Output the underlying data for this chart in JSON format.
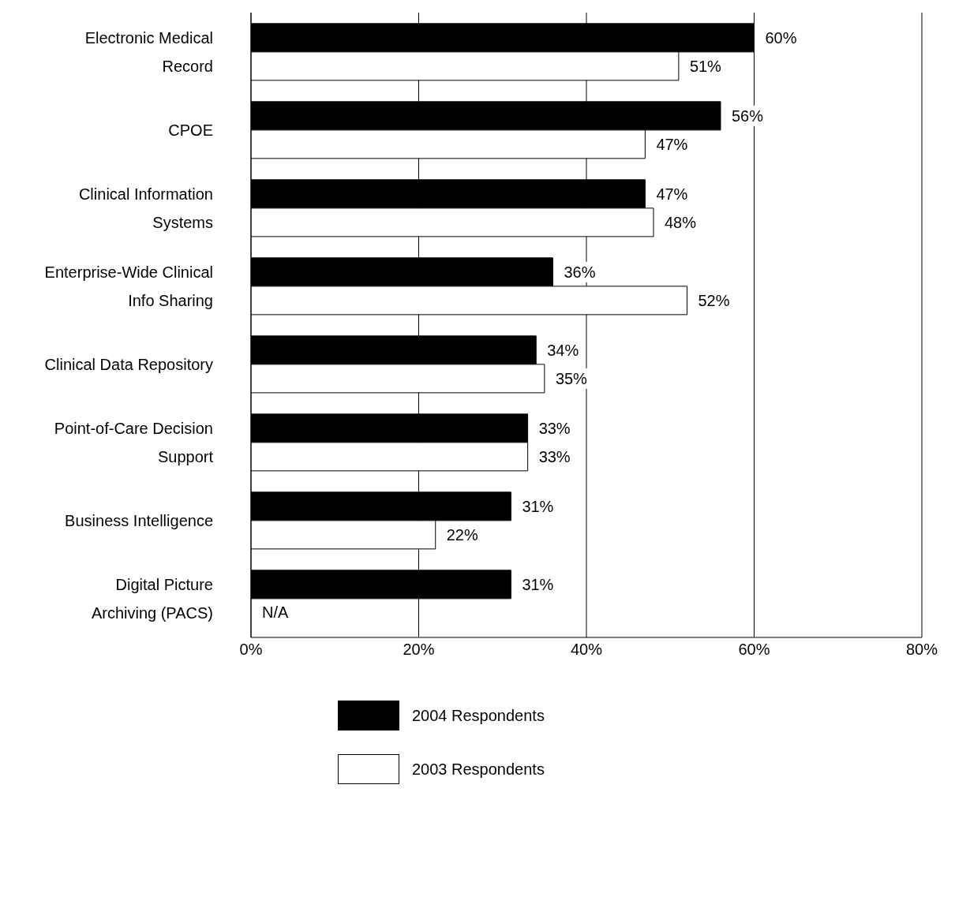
{
  "chart_data": {
    "type": "bar",
    "orientation": "horizontal",
    "categories": [
      "Electronic Medical Record",
      "CPOE",
      "Clinical Information Systems",
      "Enterprise-Wide Clinical Info Sharing",
      "Clinical Data Repository",
      "Point-of-Care Decision Support",
      "Business Intelligence",
      "Digital Picture Archiving (PACS)"
    ],
    "series": [
      {
        "name": "2004 Respondents",
        "color": "#000000",
        "values": [
          60,
          56,
          47,
          36,
          34,
          33,
          31,
          31
        ],
        "value_labels": [
          "60%",
          "56%",
          "47%",
          "36%",
          "34%",
          "33%",
          "31%",
          "31%"
        ]
      },
      {
        "name": "2003 Respondents",
        "color": "#ffffff",
        "values": [
          51,
          47,
          48,
          52,
          35,
          33,
          22,
          null
        ],
        "value_labels": [
          "51%",
          "47%",
          "48%",
          "52%",
          "35%",
          "33%",
          "22%",
          "N/A"
        ]
      }
    ],
    "xlim": [
      0,
      80
    ],
    "xticks": [
      {
        "value": 0,
        "label": "0%"
      },
      {
        "value": 20,
        "label": "20%"
      },
      {
        "value": 40,
        "label": "40%"
      },
      {
        "value": 60,
        "label": "60%"
      },
      {
        "value": 80,
        "label": "80%"
      }
    ],
    "grid": "x",
    "legend": "bottom"
  }
}
